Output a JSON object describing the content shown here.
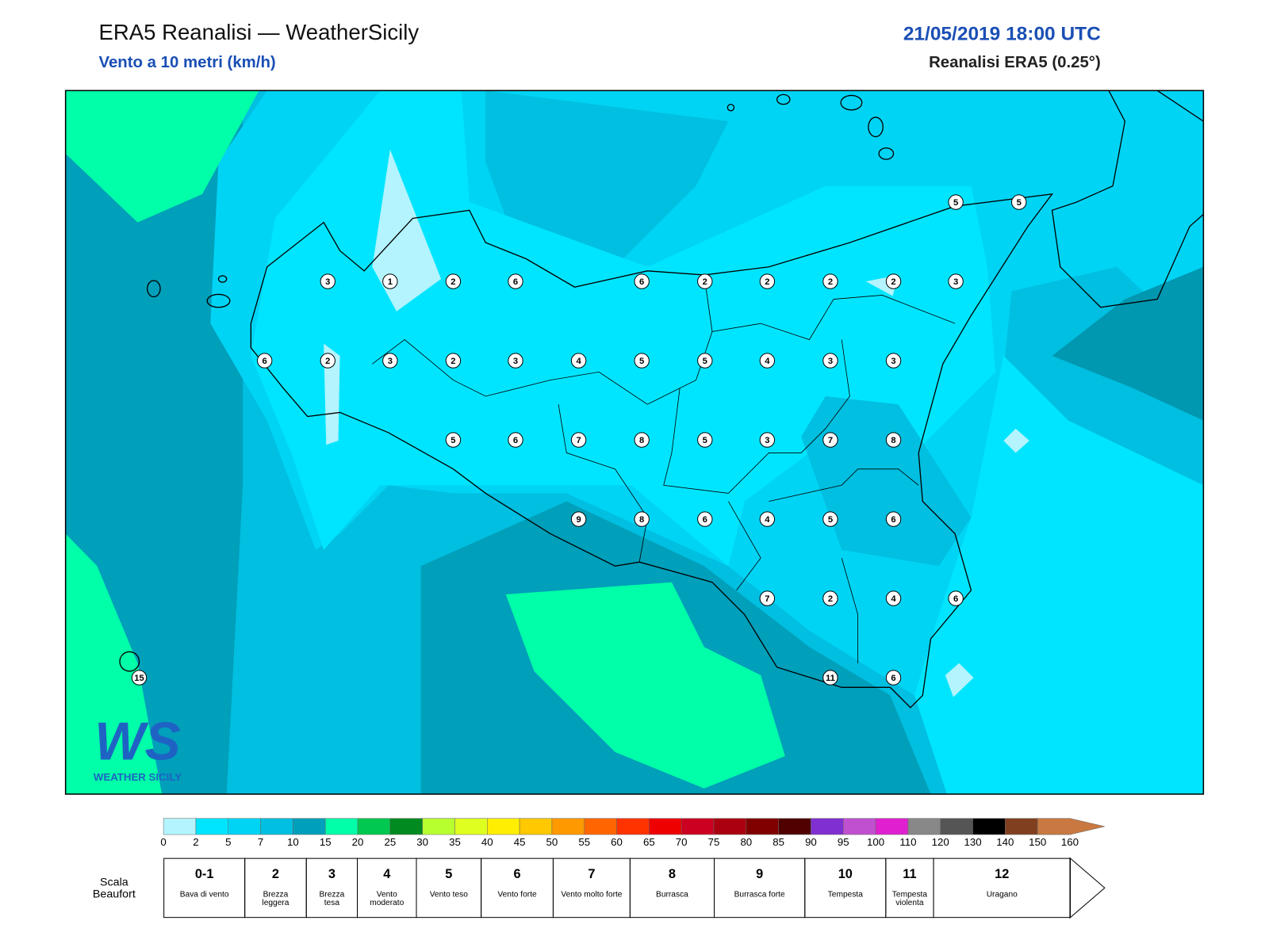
{
  "header": {
    "title": "ERA5 Reanalisi — WeatherSicily",
    "subtitle": "Vento a 10 metri (km/h)",
    "datetime": "21/05/2019 18:00 UTC",
    "source": "Reanalisi ERA5 (0.25°)"
  },
  "logo": {
    "mark": "WS",
    "name": "WEATHER SICILY"
  },
  "stations": [
    5,
    5,
    3,
    1,
    2,
    6,
    6,
    2,
    2,
    2,
    2,
    3,
    6,
    2,
    3,
    2,
    3,
    4,
    5,
    5,
    4,
    3,
    3,
    5,
    6,
    7,
    8,
    5,
    3,
    7,
    8,
    9,
    8,
    6,
    4,
    5,
    6,
    7,
    2,
    4,
    6,
    15,
    11,
    6
  ],
  "colorbar": {
    "ticks": [
      0,
      2,
      5,
      7,
      10,
      15,
      20,
      25,
      30,
      35,
      40,
      45,
      50,
      55,
      60,
      65,
      70,
      75,
      80,
      85,
      90,
      95,
      100,
      110,
      120,
      130,
      140,
      150,
      160
    ],
    "colors": [
      "#b3f4ff",
      "#00e5ff",
      "#00d4f5",
      "#00bfe0",
      "#00a0bb",
      "#00ffa8",
      "#00c850",
      "#008a20",
      "#b8ff30",
      "#dfff20",
      "#ffee00",
      "#ffc800",
      "#ff9900",
      "#ff6600",
      "#ff3300",
      "#ee0000",
      "#cc0020",
      "#aa0010",
      "#800000",
      "#500000",
      "#8030d0",
      "#c050d0",
      "#e020d0",
      "#888888",
      "#555555",
      "#000000",
      "#804020",
      "#c87840"
    ]
  },
  "beaufort": {
    "label": "Scala Beaufort",
    "forces": [
      {
        "force": "0-1",
        "description": "Bava di vento"
      },
      {
        "force": "2",
        "description": "Brezza leggera"
      },
      {
        "force": "3",
        "description": "Brezza tesa"
      },
      {
        "force": "4",
        "description": "Vento moderato"
      },
      {
        "force": "5",
        "description": "Vento teso"
      },
      {
        "force": "6",
        "description": "Vento forte"
      },
      {
        "force": "7",
        "description": "Vento molto forte"
      },
      {
        "force": "8",
        "description": "Burrasca"
      },
      {
        "force": "9",
        "description": "Burrasca forte"
      },
      {
        "force": "10",
        "description": "Tempesta"
      },
      {
        "force": "11",
        "description": "Tempesta violenta"
      },
      {
        "force": "12",
        "description": "Uragano"
      }
    ]
  }
}
